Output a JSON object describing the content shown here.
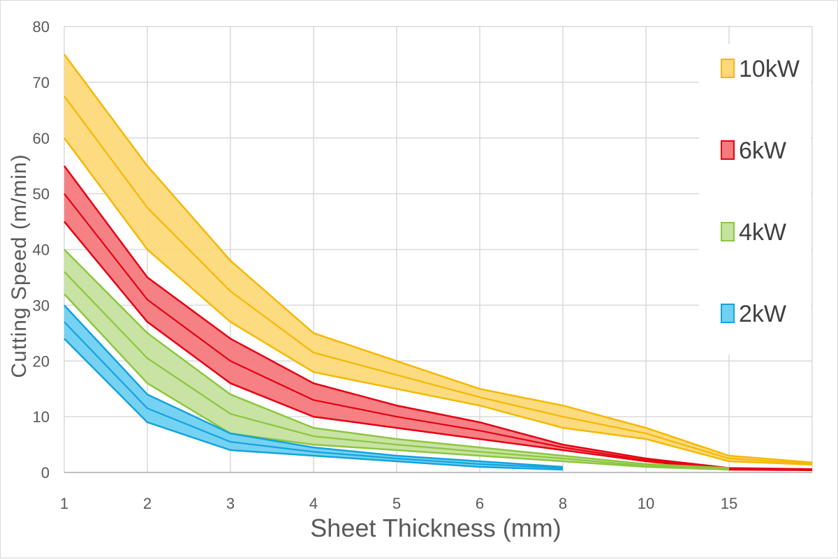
{
  "chart_data": {
    "type": "area",
    "title": "",
    "xlabel": "Sheet Thickness (mm)",
    "ylabel": "Cutting Speed (m/min)",
    "categories": [
      "1",
      "2",
      "3",
      "4",
      "5",
      "6",
      "8",
      "10",
      "15",
      ""
    ],
    "yticks": [
      "0",
      "10",
      "20",
      "30",
      "40",
      "50",
      "60",
      "70",
      "80"
    ],
    "ylim": [
      0,
      80
    ],
    "grid": true,
    "legend_position": "right",
    "series": [
      {
        "name": "10kW",
        "color": "#f5b800",
        "fill": "#fcd97a",
        "upper": [
          75,
          55,
          38,
          25,
          20,
          15,
          12,
          8,
          3,
          1.8
        ],
        "mid": [
          67.5,
          47.5,
          32.5,
          21.5,
          17.5,
          13.5,
          10,
          7,
          2.5,
          1.6
        ],
        "lower": [
          60,
          40,
          27,
          18,
          15,
          12,
          8,
          6,
          2,
          1.4
        ]
      },
      {
        "name": "6kW",
        "color": "#e60012",
        "fill": "#f47a7e",
        "upper": [
          55,
          35,
          24,
          16,
          12,
          9,
          5,
          2.5,
          0.8,
          0.6
        ],
        "mid": [
          50,
          31,
          20,
          13,
          10,
          7.5,
          4.5,
          2.2,
          0.7,
          0.5
        ],
        "lower": [
          45,
          27,
          16,
          10,
          8,
          6,
          4,
          2,
          0.5,
          0.4
        ]
      },
      {
        "name": "4kW",
        "color": "#8cc63f",
        "fill": "#c5e29e",
        "upper": [
          40,
          25,
          14,
          8,
          6,
          4.5,
          3,
          1.5,
          0.8
        ],
        "mid": [
          36,
          20.5,
          10.5,
          6.5,
          5,
          3.7,
          2.5,
          1.2,
          0.6
        ],
        "lower": [
          32,
          16,
          7,
          5,
          4,
          3,
          2,
          1,
          0.5
        ]
      },
      {
        "name": "2kW",
        "color": "#12a3dc",
        "fill": "#6fd0f2",
        "upper": [
          30,
          14,
          7,
          4.5,
          3,
          2,
          1
        ],
        "mid": [
          27,
          11.5,
          5.5,
          3.7,
          2.5,
          1.5,
          0.8
        ],
        "lower": [
          24,
          9,
          4,
          3,
          2,
          1,
          0.5
        ]
      }
    ]
  }
}
